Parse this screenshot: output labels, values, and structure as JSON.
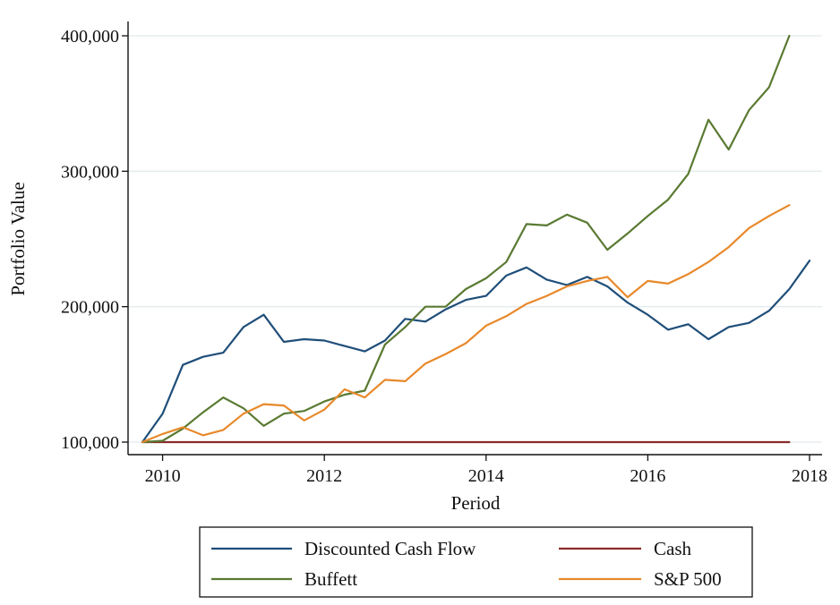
{
  "chart_data": {
    "type": "line",
    "title": "",
    "xlabel": "Period",
    "ylabel": "Portfolio Value",
    "xlim": [
      2009.75,
      2018.0
    ],
    "ylim": [
      95000,
      405000
    ],
    "xticks": [
      2010,
      2012,
      2014,
      2016,
      2018
    ],
    "xtick_labels": [
      "2010",
      "2012",
      "2014",
      "2016",
      "2018"
    ],
    "yticks": [
      100000,
      200000,
      300000,
      400000
    ],
    "ytick_labels": [
      "100,000",
      "200,000",
      "300,000",
      "400,000"
    ],
    "grid": "horizontal",
    "legend_position": "bottom",
    "series": [
      {
        "name": "Discounted Cash Flow",
        "color": "#1f4e79",
        "x": [
          2009.75,
          2010.0,
          2010.25,
          2010.5,
          2010.75,
          2011.0,
          2011.25,
          2011.5,
          2011.75,
          2012.0,
          2012.25,
          2012.5,
          2012.75,
          2013.0,
          2013.25,
          2013.5,
          2013.75,
          2014.0,
          2014.25,
          2014.5,
          2014.75,
          2015.0,
          2015.25,
          2015.5,
          2015.75,
          2016.0,
          2016.25,
          2016.5,
          2016.75,
          2017.0,
          2017.25,
          2017.5,
          2017.75,
          2018.0
        ],
        "y": [
          100000,
          121000,
          157000,
          163000,
          166000,
          185000,
          194000,
          174000,
          176000,
          175000,
          171000,
          167000,
          175000,
          191000,
          189000,
          198000,
          205000,
          208000,
          223000,
          229000,
          220000,
          216000,
          222000,
          215000,
          203000,
          194000,
          183000,
          187000,
          176000,
          185000,
          188000,
          197000,
          213000,
          234000
        ]
      },
      {
        "name": "Cash",
        "color": "#8b2a2a",
        "x": [
          2009.75,
          2010.0,
          2010.25,
          2010.5,
          2010.75,
          2011.0,
          2011.25,
          2011.5,
          2011.75,
          2012.0,
          2012.25,
          2012.5,
          2012.75,
          2013.0,
          2013.25,
          2013.5,
          2013.75,
          2014.0,
          2014.25,
          2014.5,
          2014.75,
          2015.0,
          2015.25,
          2015.5,
          2015.75,
          2016.0,
          2016.25,
          2016.5,
          2016.75,
          2017.0,
          2017.25,
          2017.5,
          2017.75
        ],
        "y": [
          100000,
          100000,
          100000,
          100000,
          100000,
          100000,
          100000,
          100000,
          100000,
          100000,
          100000,
          100000,
          100000,
          100000,
          100000,
          100000,
          100000,
          100000,
          100000,
          100000,
          100000,
          100000,
          100000,
          100000,
          100000,
          100000,
          100000,
          100000,
          100000,
          100000,
          100000,
          100000,
          100000
        ]
      },
      {
        "name": "Buffett",
        "color": "#5a7a32",
        "x": [
          2009.75,
          2010.0,
          2010.25,
          2010.5,
          2010.75,
          2011.0,
          2011.25,
          2011.5,
          2011.75,
          2012.0,
          2012.25,
          2012.5,
          2012.75,
          2013.0,
          2013.25,
          2013.5,
          2013.75,
          2014.0,
          2014.25,
          2014.5,
          2014.75,
          2015.0,
          2015.25,
          2015.5,
          2015.75,
          2016.0,
          2016.25,
          2016.5,
          2016.75,
          2017.0,
          2017.25,
          2017.5,
          2017.75
        ],
        "y": [
          100000,
          101000,
          110000,
          122000,
          133000,
          125000,
          112000,
          121000,
          123000,
          130000,
          135000,
          138000,
          172000,
          185000,
          200000,
          200000,
          213000,
          221000,
          233000,
          261000,
          260000,
          268000,
          262000,
          242000,
          254000,
          267000,
          279000,
          298000,
          338000,
          316000,
          345000,
          362000,
          400000
        ]
      },
      {
        "name": "S&P 500",
        "color": "#e8892b",
        "x": [
          2009.75,
          2010.0,
          2010.25,
          2010.5,
          2010.75,
          2011.0,
          2011.25,
          2011.5,
          2011.75,
          2012.0,
          2012.25,
          2012.5,
          2012.75,
          2013.0,
          2013.25,
          2013.5,
          2013.75,
          2014.0,
          2014.25,
          2014.5,
          2014.75,
          2015.0,
          2015.25,
          2015.5,
          2015.75,
          2016.0,
          2016.25,
          2016.5,
          2016.75,
          2017.0,
          2017.25,
          2017.5,
          2017.75
        ],
        "y": [
          100000,
          106000,
          111000,
          105000,
          109000,
          121000,
          128000,
          127000,
          116000,
          124000,
          139000,
          133000,
          146000,
          145000,
          158000,
          165000,
          173000,
          186000,
          193000,
          202000,
          208000,
          215000,
          219000,
          222000,
          207000,
          219000,
          217000,
          224000,
          233000,
          244000,
          258000,
          267000,
          275000
        ]
      }
    ],
    "legend": {
      "rows": [
        [
          "Discounted Cash Flow",
          "Cash"
        ],
        [
          "Buffett",
          "S&P 500"
        ]
      ]
    }
  }
}
